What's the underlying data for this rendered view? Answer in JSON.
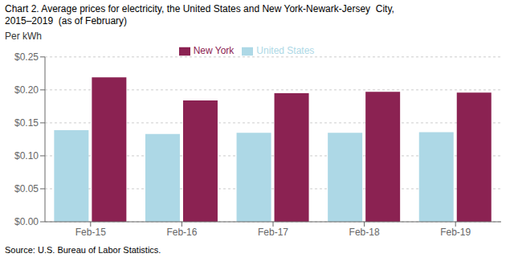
{
  "chart_data": {
    "type": "bar",
    "title": "Chart 2. Average prices for electricity, the United States and New York-Newark-Jersey  City,",
    "subtitle": "2015–2019  (as of February)",
    "ylabel": "Per kWh",
    "source": "Source: U.S. Bureau of Labor Statistics.",
    "categories": [
      "Feb-15",
      "Feb-16",
      "Feb-17",
      "Feb-18",
      "Feb-19"
    ],
    "series": [
      {
        "name": "United States",
        "color": "#ADD8E6",
        "values": [
          0.139,
          0.133,
          0.135,
          0.135,
          0.136
        ]
      },
      {
        "name": "New York",
        "color": "#8B2252",
        "values": [
          0.219,
          0.184,
          0.195,
          0.197,
          0.196
        ]
      }
    ],
    "ylim": [
      0.0,
      0.25
    ],
    "yticks": [
      {
        "value": 0.0,
        "label": "$0.00"
      },
      {
        "value": 0.05,
        "label": "$0.05"
      },
      {
        "value": 0.1,
        "label": "$0.10"
      },
      {
        "value": 0.15,
        "label": "$0.15"
      },
      {
        "value": 0.2,
        "label": "$0.20"
      },
      {
        "value": 0.25,
        "label": "$0.25"
      }
    ],
    "grid": true,
    "legend": "top"
  }
}
